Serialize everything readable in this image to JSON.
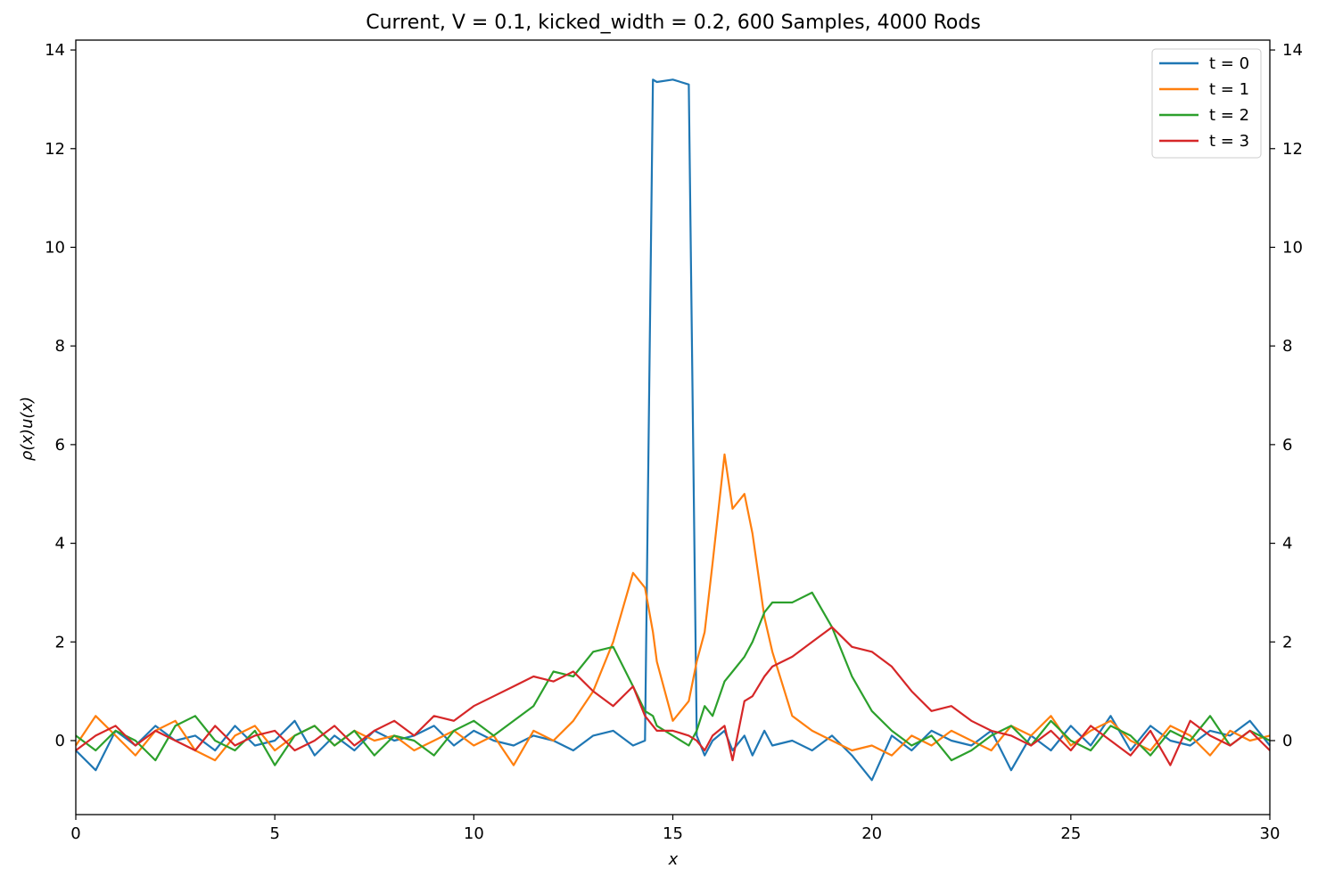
{
  "chart_data": {
    "type": "line",
    "title": "Current, V = 0.1, kicked_width = 0.2, 600 Samples, 4000 Rods",
    "xlabel": "x",
    "ylabel": "ρ(x)u(x)",
    "xlim": [
      0,
      30
    ],
    "ylim": [
      -1.5,
      14.2
    ],
    "xticks": [
      0,
      5,
      10,
      15,
      20,
      25,
      30
    ],
    "yticks": [
      0,
      2,
      4,
      6,
      8,
      10,
      12,
      14
    ],
    "grid": false,
    "legend_position": "top-right",
    "x": [
      0.0,
      0.5,
      1.0,
      1.5,
      2.0,
      2.5,
      3.0,
      3.5,
      4.0,
      4.5,
      5.0,
      5.5,
      6.0,
      6.5,
      7.0,
      7.5,
      8.0,
      8.5,
      9.0,
      9.5,
      10.0,
      10.5,
      11.0,
      11.5,
      12.0,
      12.5,
      13.0,
      13.5,
      14.0,
      14.3,
      14.5,
      14.6,
      15.0,
      15.4,
      15.6,
      15.8,
      16.0,
      16.3,
      16.5,
      16.8,
      17.0,
      17.3,
      17.5,
      18.0,
      18.5,
      19.0,
      19.5,
      20.0,
      20.5,
      21.0,
      21.5,
      22.0,
      22.5,
      23.0,
      23.5,
      24.0,
      24.5,
      25.0,
      25.5,
      26.0,
      26.5,
      27.0,
      27.5,
      28.0,
      28.5,
      29.0,
      29.5,
      30.0
    ],
    "series": [
      {
        "name": "t = 0",
        "color": "#1f77b4",
        "values": [
          -0.2,
          -0.6,
          0.2,
          -0.1,
          0.3,
          0.0,
          0.1,
          -0.2,
          0.3,
          -0.1,
          0.0,
          0.4,
          -0.3,
          0.1,
          -0.2,
          0.2,
          0.0,
          0.1,
          0.3,
          -0.1,
          0.2,
          0.0,
          -0.1,
          0.1,
          0.0,
          -0.2,
          0.1,
          0.2,
          -0.1,
          0.0,
          13.4,
          13.35,
          13.4,
          13.3,
          0.1,
          -0.3,
          0.0,
          0.2,
          -0.2,
          0.1,
          -0.3,
          0.2,
          -0.1,
          0.0,
          -0.2,
          0.1,
          -0.3,
          -0.8,
          0.1,
          -0.2,
          0.2,
          0.0,
          -0.1,
          0.2,
          -0.6,
          0.1,
          -0.2,
          0.3,
          -0.1,
          0.5,
          -0.2,
          0.3,
          0.0,
          -0.1,
          0.2,
          0.1,
          0.4,
          -0.1
        ]
      },
      {
        "name": "t = 1",
        "color": "#ff7f0e",
        "values": [
          -0.1,
          0.5,
          0.1,
          -0.3,
          0.2,
          0.4,
          -0.2,
          -0.4,
          0.1,
          0.3,
          -0.2,
          0.1,
          0.3,
          -0.1,
          0.2,
          0.0,
          0.1,
          -0.2,
          0.0,
          0.2,
          -0.1,
          0.1,
          -0.5,
          0.2,
          0.0,
          0.4,
          1.0,
          2.0,
          3.4,
          3.1,
          2.2,
          1.6,
          0.4,
          0.8,
          1.6,
          2.2,
          3.6,
          5.8,
          4.7,
          5.0,
          4.2,
          2.5,
          1.8,
          0.5,
          0.2,
          0.0,
          -0.2,
          -0.1,
          -0.3,
          0.1,
          -0.1,
          0.2,
          0.0,
          -0.2,
          0.3,
          0.1,
          0.5,
          -0.1,
          0.2,
          0.4,
          0.0,
          -0.2,
          0.3,
          0.1,
          -0.3,
          0.2,
          0.0,
          0.1
        ]
      },
      {
        "name": "t = 2",
        "color": "#2ca02c",
        "values": [
          0.1,
          -0.2,
          0.2,
          0.0,
          -0.4,
          0.3,
          0.5,
          0.0,
          -0.2,
          0.2,
          -0.5,
          0.1,
          0.3,
          -0.1,
          0.2,
          -0.3,
          0.1,
          0.0,
          -0.3,
          0.2,
          0.4,
          0.1,
          0.4,
          0.7,
          1.4,
          1.3,
          1.8,
          1.9,
          1.1,
          0.6,
          0.5,
          0.3,
          0.1,
          -0.1,
          0.2,
          0.7,
          0.5,
          1.2,
          1.4,
          1.7,
          2.0,
          2.6,
          2.8,
          2.8,
          3.0,
          2.3,
          1.3,
          0.6,
          0.2,
          -0.1,
          0.1,
          -0.4,
          -0.2,
          0.1,
          0.3,
          -0.1,
          0.4,
          0.0,
          -0.2,
          0.3,
          0.1,
          -0.3,
          0.2,
          0.0,
          0.5,
          -0.1,
          0.2,
          0.0
        ]
      },
      {
        "name": "t = 3",
        "color": "#d62728",
        "values": [
          -0.2,
          0.1,
          0.3,
          -0.1,
          0.2,
          0.0,
          -0.2,
          0.3,
          -0.1,
          0.1,
          0.2,
          -0.2,
          0.0,
          0.3,
          -0.1,
          0.2,
          0.4,
          0.1,
          0.5,
          0.4,
          0.7,
          0.9,
          1.1,
          1.3,
          1.2,
          1.4,
          1.0,
          0.7,
          1.1,
          0.5,
          0.3,
          0.2,
          0.2,
          0.1,
          0.0,
          -0.2,
          0.1,
          0.3,
          -0.4,
          0.8,
          0.9,
          1.3,
          1.5,
          1.7,
          2.0,
          2.3,
          1.9,
          1.8,
          1.5,
          1.0,
          0.6,
          0.7,
          0.4,
          0.2,
          0.1,
          -0.1,
          0.2,
          -0.2,
          0.3,
          0.0,
          -0.3,
          0.2,
          -0.5,
          0.4,
          0.1,
          -0.1,
          0.2,
          -0.2
        ]
      }
    ]
  }
}
